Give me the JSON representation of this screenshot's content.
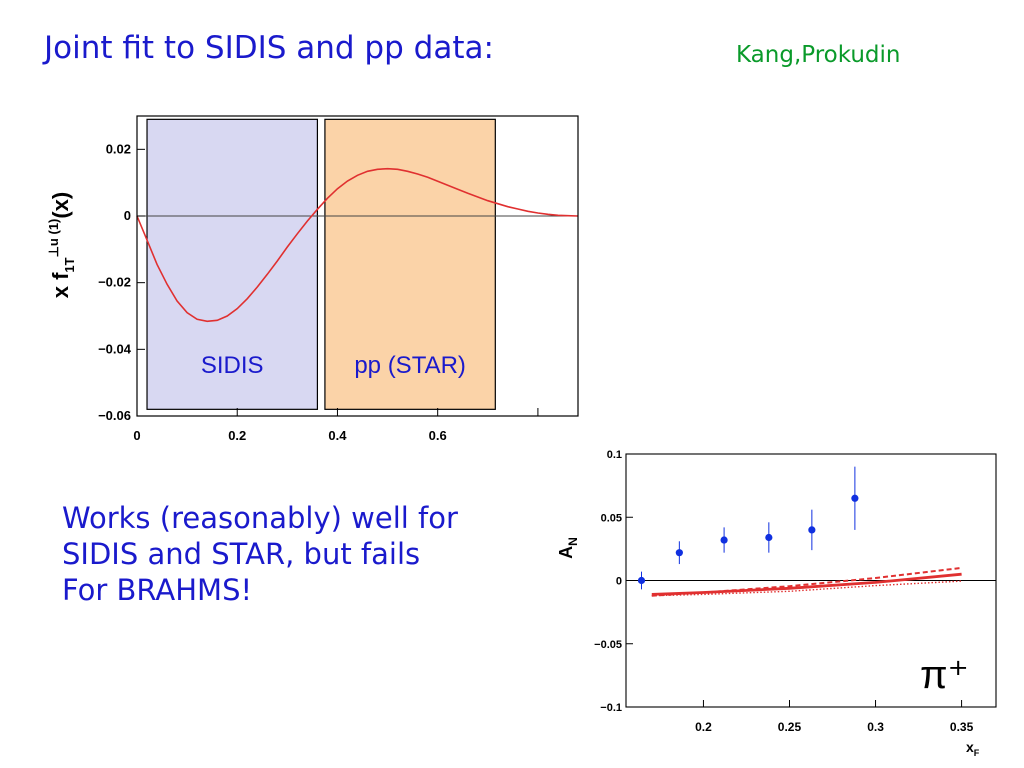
{
  "slide": {
    "title": "Joint fit to SIDIS and pp data:",
    "authors": "Kang,Prokudin",
    "comment_lines": [
      "Works (reasonably) well for",
      "SIDIS and STAR, but fails",
      "For BRAHMS!"
    ]
  },
  "colors": {
    "title": "#1a1acc",
    "authors": "#0a9a2a",
    "curve": "#e03030",
    "sidis_band": "#d8d8f2",
    "star_band": "#fbd3a8",
    "points": "#1030e0"
  },
  "chart_data": [
    {
      "type": "line",
      "ylabel_main": "x f",
      "ylabel_sup": "⊥u (1)",
      "ylabel_sub": "1T",
      "ylabel_tail": "(x)",
      "xlim": [
        0,
        0.88
      ],
      "ylim": [
        -0.06,
        0.03
      ],
      "x_ticks": [
        0,
        0.2,
        0.4,
        0.6
      ],
      "x_tick_labels": [
        "0",
        "0.2",
        "0.4",
        "0.6"
      ],
      "y_ticks": [
        -0.06,
        -0.04,
        -0.02,
        0,
        0.02
      ],
      "y_tick_labels": [
        "−0.06",
        "−0.04",
        "−0.02",
        "0",
        "0.02"
      ],
      "regions": [
        {
          "label": "SIDIS",
          "x": [
            0.02,
            0.36
          ],
          "y": [
            -0.058,
            0.029
          ]
        },
        {
          "label": "pp (STAR)",
          "x": [
            0.375,
            0.715
          ],
          "y": [
            -0.058,
            0.029
          ]
        }
      ],
      "series": [
        {
          "x": [
            0.0,
            0.02,
            0.04,
            0.06,
            0.08,
            0.1,
            0.12,
            0.14,
            0.16,
            0.18,
            0.2,
            0.22,
            0.24,
            0.26,
            0.28,
            0.3,
            0.32,
            0.34,
            0.36,
            0.38,
            0.4,
            0.42,
            0.44,
            0.46,
            0.48,
            0.5,
            0.52,
            0.54,
            0.56,
            0.58,
            0.6,
            0.62,
            0.64,
            0.66,
            0.68,
            0.7,
            0.72,
            0.74,
            0.76,
            0.78,
            0.8,
            0.82,
            0.84,
            0.86,
            0.88
          ],
          "y": [
            0.0,
            -0.0072,
            -0.0145,
            -0.0205,
            -0.0255,
            -0.029,
            -0.031,
            -0.0316,
            -0.0313,
            -0.03,
            -0.0278,
            -0.0248,
            -0.0213,
            -0.0175,
            -0.0135,
            -0.0093,
            -0.0053,
            -0.0015,
            0.002,
            0.0053,
            0.0082,
            0.0105,
            0.0122,
            0.0134,
            0.014,
            0.0142,
            0.014,
            0.0134,
            0.0126,
            0.0116,
            0.0104,
            0.0092,
            0.008,
            0.0068,
            0.0057,
            0.0046,
            0.0037,
            0.0028,
            0.0021,
            0.0014,
            0.0009,
            0.0005,
            0.0002,
            0.0001,
            0.0
          ]
        }
      ]
    },
    {
      "type": "scatter",
      "ylabel": "A",
      "ylabel_sub": "N",
      "xlabel": "x",
      "xlabel_sub": "F",
      "annotation": "π⁺",
      "xlim": [
        0.155,
        0.37
      ],
      "ylim": [
        -0.1,
        0.1
      ],
      "x_ticks": [
        0.2,
        0.25,
        0.3,
        0.35
      ],
      "x_tick_labels": [
        "0.2",
        "0.25",
        "0.3",
        "0.35"
      ],
      "y_ticks": [
        -0.1,
        -0.05,
        0,
        0.05,
        0.1
      ],
      "y_tick_labels": [
        "−0.1",
        "−0.05",
        "0",
        "0.05",
        "0.1"
      ],
      "points": {
        "x": [
          0.164,
          0.186,
          0.212,
          0.238,
          0.263,
          0.288
        ],
        "y": [
          0.0,
          0.022,
          0.032,
          0.034,
          0.04,
          0.065
        ],
        "err": [
          0.007,
          0.009,
          0.01,
          0.012,
          0.016,
          0.025
        ]
      },
      "curves": [
        {
          "style": "solid",
          "x": [
            0.17,
            0.2,
            0.25,
            0.3,
            0.35
          ],
          "y": [
            -0.011,
            -0.0095,
            -0.0062,
            -0.0015,
            0.005
          ]
        },
        {
          "style": "dashed",
          "x": [
            0.17,
            0.2,
            0.25,
            0.3,
            0.35
          ],
          "y": [
            -0.012,
            -0.0095,
            -0.0045,
            0.002,
            0.01
          ]
        },
        {
          "style": "dotted",
          "x": [
            0.17,
            0.2,
            0.25,
            0.3,
            0.35
          ],
          "y": [
            -0.012,
            -0.011,
            -0.0085,
            -0.004,
            -0.0005
          ]
        }
      ]
    }
  ]
}
